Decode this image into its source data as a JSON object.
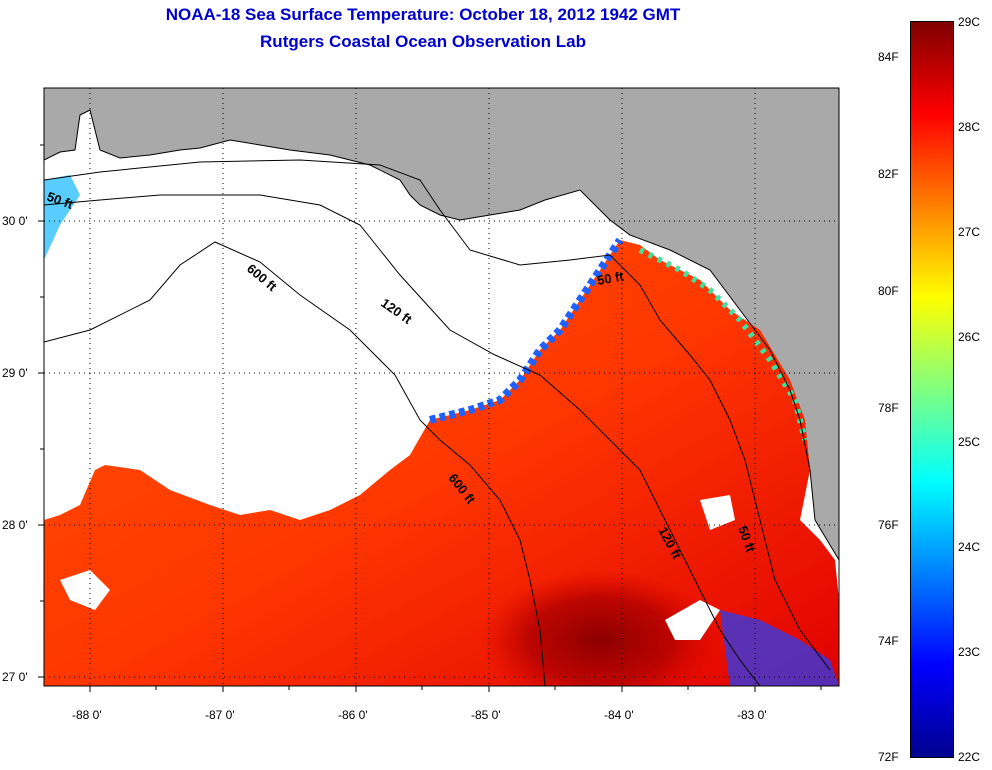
{
  "header": {
    "title": "NOAA-18 Sea Surface Temperature:  October 18, 2012 1942 GMT",
    "subtitle": "Rutgers Coastal Ocean Observation Lab"
  },
  "map": {
    "lat_labels": [
      "30 0'",
      "29 0'",
      "28 0'",
      "27 0'"
    ],
    "lon_labels": [
      "-88 0'",
      "-87 0'",
      "-86 0'",
      "-85 0'",
      "-84 0'",
      "-83 0'"
    ],
    "contour_labels": [
      "50 ft",
      "600 ft",
      "120 ft",
      "50 ft",
      "600 ft",
      "120 ft",
      "50 ft"
    ],
    "colors": {
      "land": "#a9a9a9",
      "cloud": "#ffffff"
    }
  },
  "colorbar": {
    "celsius_labels": [
      "29C",
      "28C",
      "27C",
      "26C",
      "25C",
      "24C",
      "23C",
      "22C"
    ],
    "fahrenheit_labels": [
      "84F",
      "82F",
      "80F",
      "78F",
      "76F",
      "74F",
      "72F"
    ],
    "stops": [
      "#7f0000",
      "#ff0000",
      "#ff8000",
      "#ffff00",
      "#80ff80",
      "#00ffff",
      "#0080ff",
      "#0000ff",
      "#00008f"
    ]
  }
}
